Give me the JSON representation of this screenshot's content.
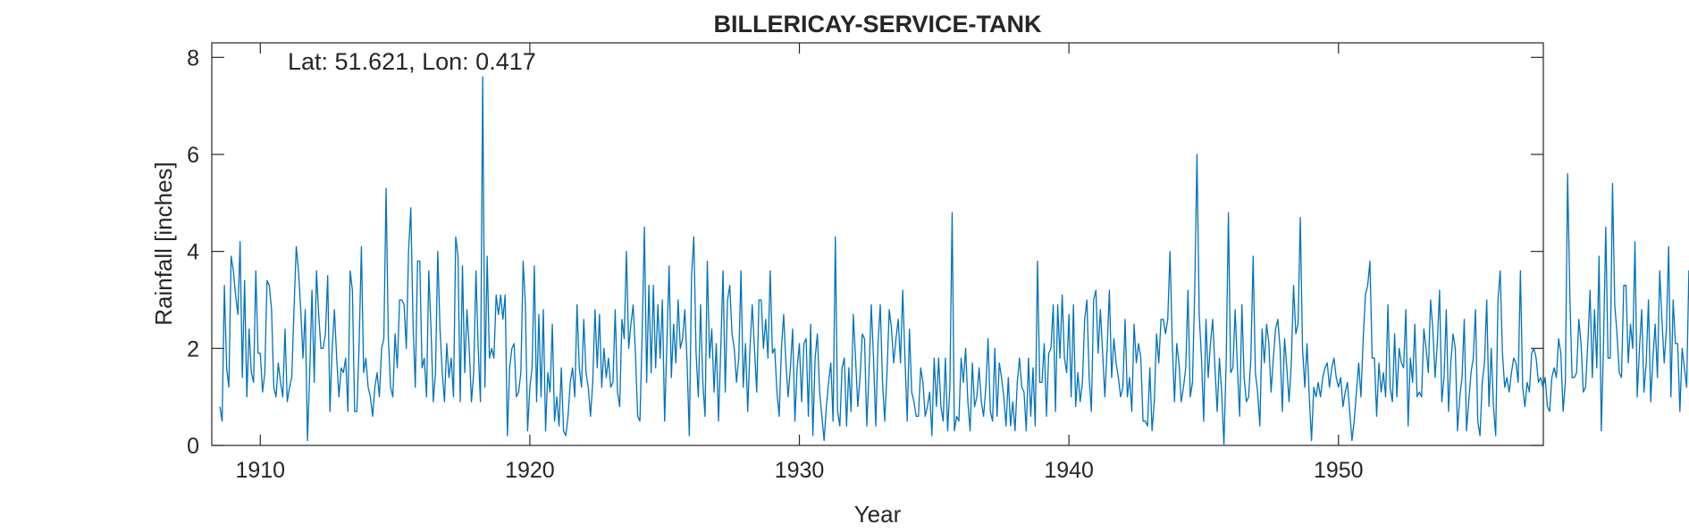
{
  "chart_data": {
    "type": "line",
    "title": "BILLERICAY-SERVICE-TANK",
    "annotation": "Lat: 51.621, Lon: 0.417",
    "xlabel": "Year",
    "ylabel": "Rainfall [inches]",
    "xlim": [
      1908.2,
      1957.6
    ],
    "ylim": [
      0,
      8.3
    ],
    "xticks": [
      1910,
      1920,
      1930,
      1940,
      1950
    ],
    "yticks": [
      0,
      2,
      4,
      6,
      8
    ],
    "grid": false,
    "line_color": "#0072BD",
    "series": [
      {
        "x_start": 1908.5,
        "x_step": 0.0833333,
        "values": [
          0.8,
          0.5,
          3.3,
          1.6,
          1.2,
          3.9,
          3.6,
          3.1,
          2.7,
          4.2,
          1.4,
          3.4,
          1.0,
          2.4,
          1.5,
          1.3,
          3.6,
          1.9,
          1.9,
          1.1,
          1.5,
          3.4,
          3.3,
          2.8,
          1.2,
          1.0,
          1.7,
          1.3,
          1.0,
          2.4,
          0.9,
          1.2,
          1.4,
          2.8,
          4.1,
          3.6,
          2.8,
          1.8,
          2.8,
          0.1,
          1.5,
          3.2,
          1.3,
          3.6,
          2.7,
          2.0,
          2.0,
          2.3,
          3.5,
          0.7,
          2.0,
          2.8,
          1.8,
          1.0,
          1.6,
          1.5,
          1.8,
          0.7,
          3.6,
          3.2,
          0.7,
          0.7,
          2.1,
          4.1,
          1.5,
          1.8,
          1.2,
          1.0,
          0.6,
          1.2,
          1.5,
          1.0,
          2.0,
          2.2,
          5.3,
          2.2,
          1.2,
          1.0,
          2.3,
          1.6,
          3.0,
          3.0,
          2.9,
          2.0,
          4.0,
          4.9,
          2.5,
          1.2,
          3.8,
          3.8,
          1.6,
          1.8,
          1.0,
          3.6,
          2.4,
          0.9,
          1.5,
          4.0,
          2.4,
          1.5,
          0.9,
          2.1,
          1.4,
          1.8,
          1.0,
          4.3,
          3.9,
          0.9,
          3.7,
          1.5,
          2.8,
          2.0,
          0.9,
          1.5,
          3.6,
          2.0,
          0.9,
          7.6,
          1.2,
          3.9,
          1.8,
          2.0,
          1.8,
          3.1,
          2.7,
          3.1,
          2.6,
          3.1,
          0.2,
          1.6,
          2.0,
          2.1,
          1.0,
          1.1,
          1.5,
          3.8,
          2.9,
          0.3,
          1.2,
          1.6,
          3.7,
          0.9,
          2.7,
          1.0,
          2.8,
          0.3,
          1.5,
          1.1,
          2.5,
          0.5,
          1.0,
          0.4,
          1.6,
          0.3,
          0.2,
          0.6,
          1.3,
          1.6,
          1.0,
          2.9,
          1.6,
          1.2,
          2.6,
          1.5,
          1.2,
          0.6,
          1.3,
          2.8,
          1.6,
          2.7,
          1.2,
          2.0,
          1.4,
          1.8,
          1.2,
          1.3,
          2.8,
          1.1,
          0.8,
          2.6,
          2.2,
          4.0,
          2.0,
          2.5,
          2.9,
          1.9,
          0.6,
          0.5,
          2.3,
          4.5,
          1.3,
          3.3,
          1.5,
          3.3,
          1.6,
          2.9,
          1.8,
          3.0,
          0.5,
          2.1,
          3.7,
          1.4,
          2.5,
          1.7,
          3.0,
          2.0,
          2.2,
          2.8,
          1.7,
          0.2,
          3.5,
          4.3,
          1.9,
          1.0,
          2.9,
          1.3,
          0.6,
          3.8,
          1.8,
          2.4,
          1.1,
          2.1,
          0.5,
          2.0,
          3.6,
          1.1,
          3.0,
          3.3,
          2.3,
          2.0,
          1.3,
          1.8,
          3.6,
          1.2,
          2.1,
          0.7,
          2.0,
          2.9,
          2.0,
          1.1,
          3.0,
          3.0,
          2.0,
          2.6,
          1.8,
          3.6,
          1.9,
          2.0,
          1.1,
          0.6,
          2.0,
          2.7,
          1.7,
          1.0,
          1.6,
          2.4,
          0.5,
          1.6,
          2.1,
          0.9,
          2.1,
          2.2,
          0.6,
          2.5,
          0.2,
          1.8,
          2.3,
          1.1,
          0.6,
          0.1,
          0.8,
          1.3,
          1.7,
          0.5,
          4.3,
          0.7,
          0.4,
          1.6,
          1.8,
          0.4,
          1.6,
          0.7,
          2.7,
          1.8,
          0.8,
          1.4,
          2.3,
          2.2,
          0.4,
          1.5,
          2.9,
          1.8,
          0.4,
          2.1,
          2.9,
          1.3,
          0.5,
          1.5,
          2.8,
          2.4,
          1.7,
          2.2,
          2.6,
          1.7,
          3.2,
          1.8,
          0.5,
          2.4,
          1.1,
          0.9,
          0.6,
          0.6,
          1.6,
          1.3,
          0.6,
          0.8,
          1.1,
          0.2,
          1.8,
          0.8,
          1.8,
          0.8,
          0.5,
          1.8,
          0.3,
          1.2,
          4.8,
          0.3,
          0.6,
          0.5,
          1.8,
          1.3,
          2.0,
          0.9,
          0.3,
          1.7,
          0.8,
          1.0,
          1.6,
          0.9,
          0.6,
          1.2,
          2.2,
          0.7,
          0.5,
          2.0,
          0.6,
          1.7,
          1.4,
          1.0,
          0.4,
          1.4,
          0.4,
          0.9,
          0.3,
          1.3,
          1.8,
          1.2,
          1.1,
          0.3,
          1.8,
          0.6,
          1.6,
          0.4,
          3.8,
          1.3,
          1.3,
          2.1,
          0.6,
          1.9,
          2.0,
          2.9,
          0.7,
          2.9,
          1.8,
          3.1,
          1.8,
          1.5,
          2.7,
          1.0,
          2.9,
          0.8,
          1.5,
          0.9,
          1.3,
          2.6,
          3.0,
          1.4,
          0.7,
          3.0,
          3.2,
          1.9,
          2.8,
          1.9,
          1.0,
          2.0,
          3.2,
          1.4,
          2.2,
          1.7,
          1.4,
          1.0,
          1.2,
          2.6,
          1.0,
          1.4,
          0.7,
          2.5,
          1.7,
          2.1,
          1.8,
          0.5,
          0.5,
          0.4,
          1.6,
          0.3,
          0.9,
          2.3,
          1.7,
          2.6,
          2.6,
          2.3,
          2.6,
          4.0,
          2.1,
          0.9,
          2.1,
          1.7,
          0.9,
          1.2,
          1.6,
          3.2,
          1.0,
          1.3,
          3.2,
          6.0,
          2.7,
          1.8,
          0.5,
          2.6,
          1.4,
          2.1,
          2.6,
          1.6,
          0.7,
          1.8,
          1.1,
          0.0,
          1.7,
          4.8,
          1.5,
          1.6,
          2.8,
          1.6,
          0.6,
          2.9,
          1.4,
          0.9,
          1.0,
          1.8,
          3.9,
          1.5,
          1.1,
          0.4,
          2.4,
          1.7,
          2.5,
          2.1,
          1.1,
          1.8,
          2.4,
          2.6,
          2.0,
          0.7,
          2.2,
          1.6,
          0.9,
          1.7,
          3.3,
          2.3,
          2.5,
          4.7,
          2.0,
          1.2,
          2.1,
          1.0,
          0.1,
          1.2,
          1.0,
          1.3,
          1.0,
          1.4,
          1.6,
          1.7,
          1.2,
          1.6,
          1.8,
          1.4,
          1.2,
          1.4,
          0.8,
          1.1,
          1.3,
          0.7,
          0.1,
          0.5,
          1.1,
          1.7,
          1.0,
          2.2,
          3.1,
          3.3,
          3.8,
          1.8,
          1.8,
          0.6,
          1.7,
          1.1,
          1.5,
          1.0,
          2.9,
          1.2,
          0.9,
          2.3,
          1.0,
          2.0,
          1.7,
          1.6,
          2.8,
          0.4,
          1.8,
          1.3,
          2.5,
          1.0,
          1.1,
          1.0,
          2.4,
          2.0,
          1.5,
          3.0,
          2.4,
          1.4,
          2.1,
          3.2,
          0.9,
          1.4,
          2.8,
          0.7,
          1.7,
          2.3,
          2.0,
          0.3,
          1.0,
          1.4,
          2.6,
          0.3,
          0.9,
          1.5,
          1.8,
          2.8,
          0.5,
          0.2,
          1.3,
          1.7,
          3.0,
          0.8,
          2.0,
          0.8,
          0.2,
          3.0,
          3.6,
          1.9,
          1.2,
          1.4,
          1.1,
          1.5,
          1.8,
          1.7,
          1.3,
          3.6,
          1.2,
          0.8,
          1.3,
          1.1,
          1.9,
          2.0,
          1.8,
          1.3,
          1.4,
          1.2,
          1.4,
          0.8,
          0.7,
          1.4,
          1.6,
          1.4,
          2.2,
          1.9,
          0.7,
          1.3,
          5.6,
          3.1,
          1.4,
          1.4,
          1.5,
          2.6,
          2.1,
          1.1,
          1.2,
          2.1,
          3.2,
          1.4,
          2.8,
          1.6,
          3.9,
          0.3,
          2.1,
          4.5,
          1.8,
          1.8,
          5.4,
          2.9,
          2.3,
          1.5,
          1.4,
          3.3,
          3.3,
          1.7,
          2.5,
          2.0,
          4.2,
          1.0,
          2.0,
          2.8,
          1.1,
          1.7,
          3.0,
          0.9,
          1.8,
          2.5,
          1.4,
          3.6,
          2.6,
          1.7,
          2.4,
          4.1,
          1.0,
          3.0,
          2.1,
          2.1,
          0.7,
          2.0,
          1.6,
          1.2,
          3.6,
          1.7,
          1.2,
          1.5,
          1.3,
          2.6,
          1.1,
          1.7,
          2.6,
          1.8,
          1.5,
          0.8,
          1.3,
          2.5,
          1.4,
          1.8,
          0.3,
          2.1,
          3.2,
          2.7,
          2.0,
          3.9,
          1.3,
          1.3,
          2.6,
          2.4,
          0.8,
          1.1,
          3.0,
          2.0,
          0.9,
          1.4,
          3.3,
          0.3,
          4.8,
          2.0,
          0.7,
          0.1,
          0.4,
          2.6,
          4.4,
          2.1,
          1.4,
          0.6,
          1.0,
          3.0,
          1.9,
          1.7,
          2.0,
          1.5,
          3.1,
          1.4,
          3.0,
          4.0,
          3.8,
          1.0,
          2.0,
          1.1,
          2.8,
          2.6,
          0.6,
          1.2,
          2.4,
          0.5,
          0.9,
          0.2,
          2.6,
          1.7,
          3.4,
          2.5
        ]
      }
    ]
  }
}
